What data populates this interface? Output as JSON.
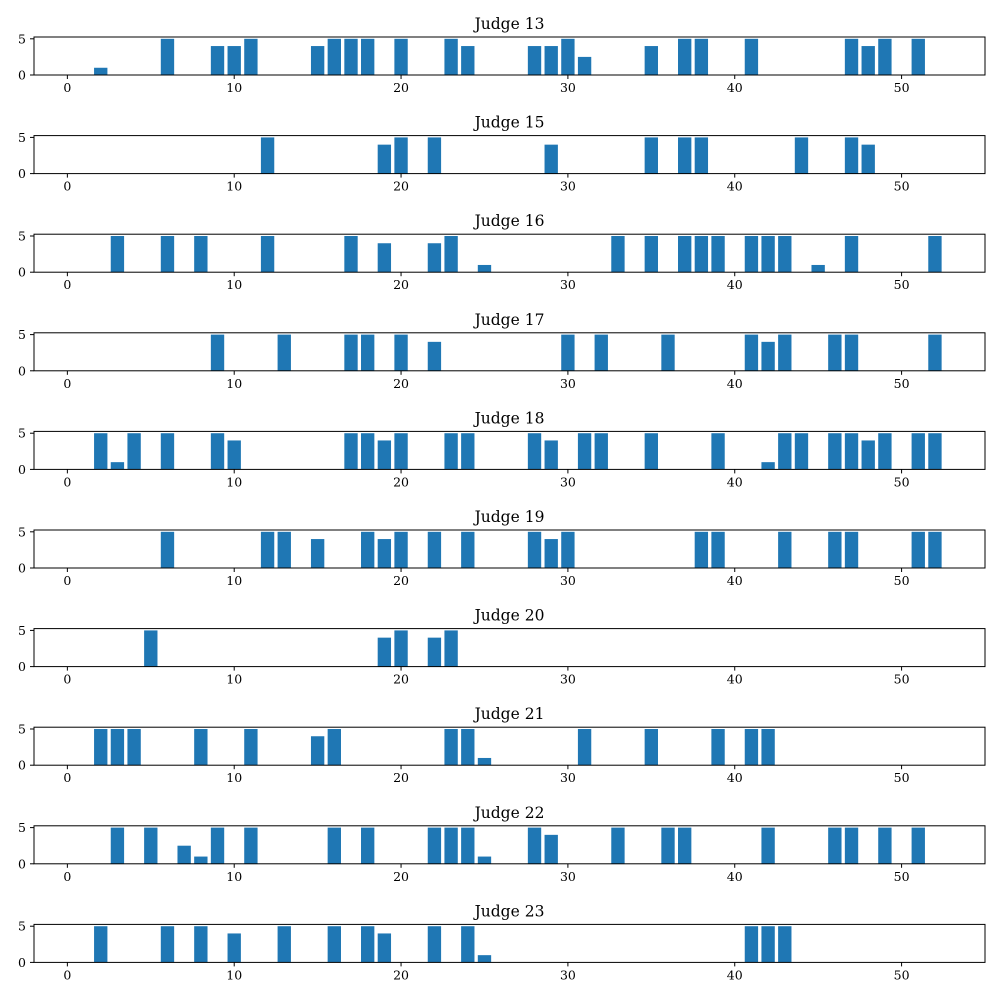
{
  "chart_data": [
    {
      "type": "bar",
      "title": "Judge 13",
      "xlim": [
        -2,
        55
      ],
      "ylim": [
        0,
        5.25
      ],
      "xticks": [
        0,
        10,
        20,
        30,
        40,
        50
      ],
      "yticks": [
        0,
        5
      ],
      "x": [
        2,
        6,
        9,
        10,
        11,
        15,
        16,
        17,
        18,
        20,
        23,
        24,
        28,
        29,
        30,
        31,
        35,
        37,
        38,
        41,
        47,
        48,
        49,
        51
      ],
      "values": [
        1,
        5,
        4,
        4,
        5,
        4,
        5,
        5,
        5,
        5,
        5,
        4,
        4,
        4,
        5,
        2.5,
        4,
        5,
        5,
        5,
        5,
        4,
        5,
        5
      ]
    },
    {
      "type": "bar",
      "title": "Judge 15",
      "xlim": [
        -2,
        55
      ],
      "ylim": [
        0,
        5.25
      ],
      "xticks": [
        0,
        10,
        20,
        30,
        40,
        50
      ],
      "yticks": [
        0,
        5
      ],
      "x": [
        12,
        19,
        20,
        22,
        29,
        35,
        37,
        38,
        44,
        47,
        48
      ],
      "values": [
        5,
        4,
        5,
        5,
        4,
        5,
        5,
        5,
        5,
        5,
        4
      ]
    },
    {
      "type": "bar",
      "title": "Judge 16",
      "xlim": [
        -2,
        55
      ],
      "ylim": [
        0,
        5.25
      ],
      "xticks": [
        0,
        10,
        20,
        30,
        40,
        50
      ],
      "yticks": [
        0,
        5
      ],
      "x": [
        3,
        6,
        8,
        12,
        17,
        19,
        22,
        23,
        25,
        33,
        35,
        37,
        38,
        39,
        41,
        42,
        43,
        45,
        47,
        52
      ],
      "values": [
        5,
        5,
        5,
        5,
        5,
        4,
        4,
        5,
        1,
        5,
        5,
        5,
        5,
        5,
        5,
        5,
        5,
        1,
        5,
        5
      ]
    },
    {
      "type": "bar",
      "title": "Judge 17",
      "xlim": [
        -2,
        55
      ],
      "ylim": [
        0,
        5.25
      ],
      "xticks": [
        0,
        10,
        20,
        30,
        40,
        50
      ],
      "yticks": [
        0,
        5
      ],
      "x": [
        9,
        13,
        17,
        18,
        20,
        22,
        30,
        32,
        36,
        41,
        42,
        43,
        46,
        47,
        52
      ],
      "values": [
        5,
        5,
        5,
        5,
        5,
        4,
        5,
        5,
        5,
        5,
        4,
        5,
        5,
        5,
        5
      ]
    },
    {
      "type": "bar",
      "title": "Judge 18",
      "xlim": [
        -2,
        55
      ],
      "ylim": [
        0,
        5.25
      ],
      "xticks": [
        0,
        10,
        20,
        30,
        40,
        50
      ],
      "yticks": [
        0,
        5
      ],
      "x": [
        2,
        3,
        4,
        6,
        9,
        10,
        17,
        18,
        19,
        20,
        23,
        24,
        28,
        29,
        31,
        32,
        35,
        39,
        42,
        43,
        44,
        46,
        47,
        48,
        49,
        51,
        52
      ],
      "values": [
        5,
        1,
        5,
        5,
        5,
        4,
        5,
        5,
        4,
        5,
        5,
        5,
        5,
        4,
        5,
        5,
        5,
        5,
        1,
        5,
        5,
        5,
        5,
        4,
        5,
        5,
        5
      ]
    },
    {
      "type": "bar",
      "title": "Judge 19",
      "xlim": [
        -2,
        55
      ],
      "ylim": [
        0,
        5.25
      ],
      "xticks": [
        0,
        10,
        20,
        30,
        40,
        50
      ],
      "yticks": [
        0,
        5
      ],
      "x": [
        6,
        12,
        13,
        15,
        18,
        19,
        20,
        22,
        24,
        28,
        29,
        30,
        38,
        39,
        43,
        46,
        47,
        51,
        52
      ],
      "values": [
        5,
        5,
        5,
        4,
        5,
        4,
        5,
        5,
        5,
        5,
        4,
        5,
        5,
        5,
        5,
        5,
        5,
        5,
        5
      ]
    },
    {
      "type": "bar",
      "title": "Judge 20",
      "xlim": [
        -2,
        55
      ],
      "ylim": [
        0,
        5.25
      ],
      "xticks": [
        0,
        10,
        20,
        30,
        40,
        50
      ],
      "yticks": [
        0,
        5
      ],
      "x": [
        5,
        19,
        20,
        22,
        23
      ],
      "values": [
        5,
        4,
        5,
        4,
        5
      ]
    },
    {
      "type": "bar",
      "title": "Judge 21",
      "xlim": [
        -2,
        55
      ],
      "ylim": [
        0,
        5.25
      ],
      "xticks": [
        0,
        10,
        20,
        30,
        40,
        50
      ],
      "yticks": [
        0,
        5
      ],
      "x": [
        2,
        3,
        4,
        8,
        11,
        15,
        16,
        23,
        24,
        25,
        31,
        35,
        39,
        41,
        42
      ],
      "values": [
        5,
        5,
        5,
        5,
        5,
        4,
        5,
        5,
        5,
        1,
        5,
        5,
        5,
        5,
        5
      ]
    },
    {
      "type": "bar",
      "title": "Judge 22",
      "xlim": [
        -2,
        55
      ],
      "ylim": [
        0,
        5.25
      ],
      "xticks": [
        0,
        10,
        20,
        30,
        40,
        50
      ],
      "yticks": [
        0,
        5
      ],
      "x": [
        3,
        5,
        7,
        8,
        9,
        11,
        16,
        18,
        22,
        23,
        24,
        25,
        28,
        29,
        33,
        36,
        37,
        42,
        46,
        47,
        49,
        51
      ],
      "values": [
        5,
        5,
        2.5,
        1,
        5,
        5,
        5,
        5,
        5,
        5,
        5,
        1,
        5,
        4,
        5,
        5,
        5,
        5,
        5,
        5,
        5,
        5
      ]
    },
    {
      "type": "bar",
      "title": "Judge 23",
      "xlim": [
        -2,
        55
      ],
      "ylim": [
        0,
        5.25
      ],
      "xticks": [
        0,
        10,
        20,
        30,
        40,
        50
      ],
      "yticks": [
        0,
        5
      ],
      "x": [
        2,
        6,
        8,
        10,
        13,
        16,
        18,
        19,
        22,
        24,
        25,
        41,
        42,
        43
      ],
      "values": [
        5,
        5,
        5,
        4,
        5,
        5,
        5,
        4,
        5,
        5,
        1,
        5,
        5,
        5
      ]
    }
  ],
  "colors": {
    "bar": "#1f77b4",
    "axis": "#000000"
  }
}
